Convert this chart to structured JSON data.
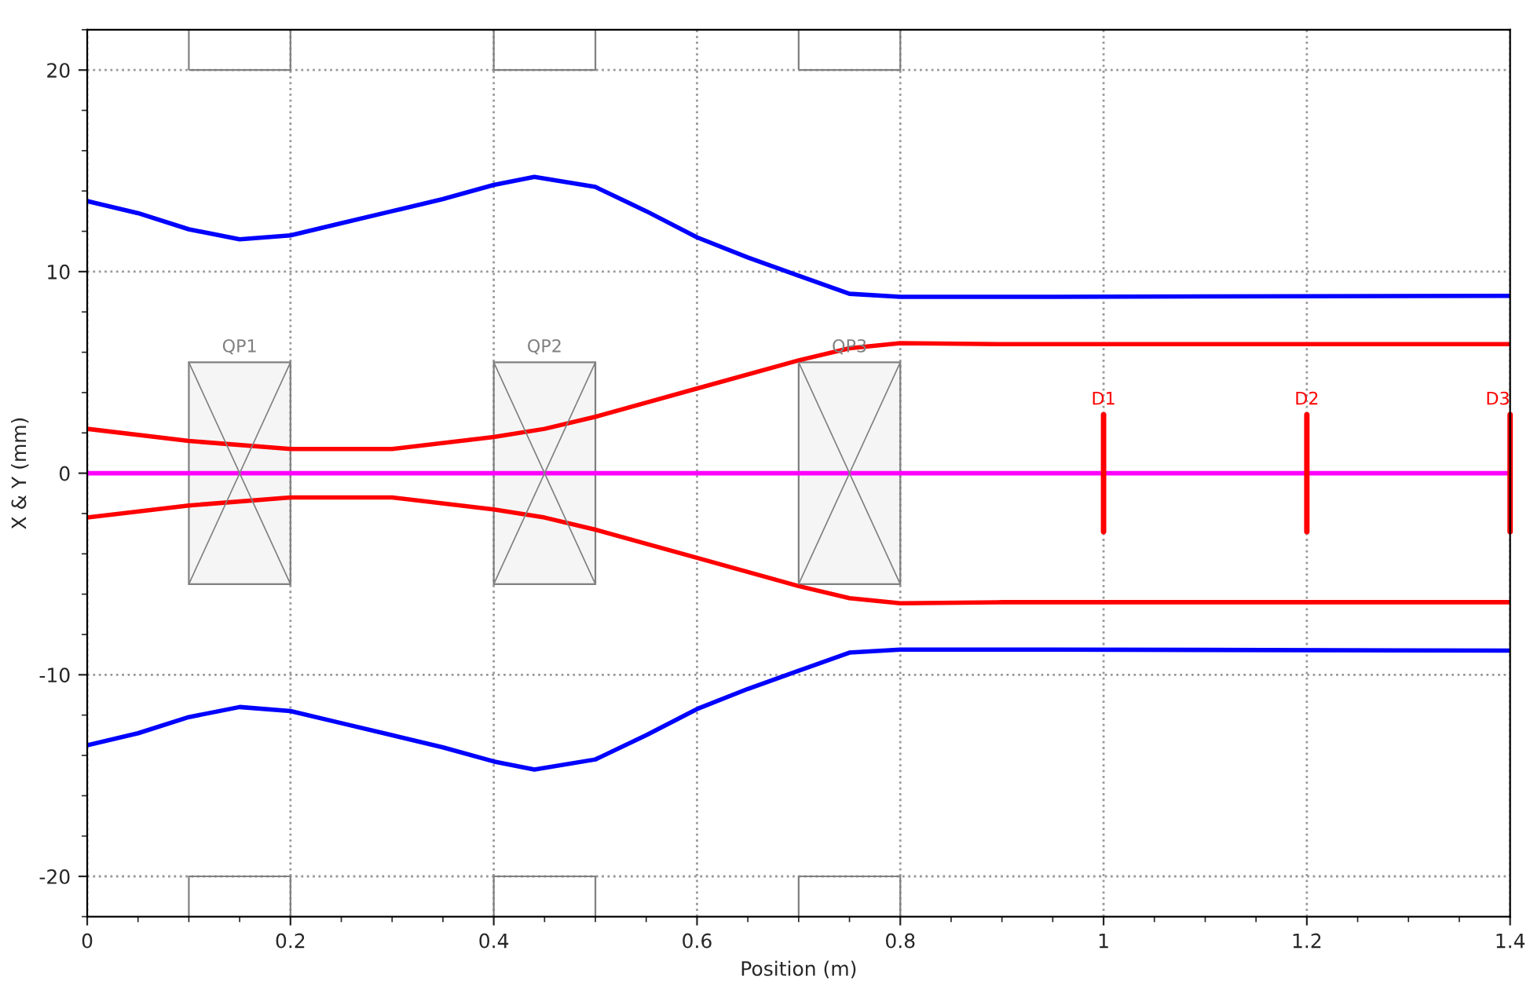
{
  "chart_data": {
    "type": "line",
    "xlabel": "Position (m)",
    "ylabel": "X & Y (mm)",
    "xlim": [
      0,
      1.4
    ],
    "xticks": [
      0,
      0.2,
      0.4,
      0.6,
      0.8,
      1,
      1.2,
      1.4
    ],
    "ylim": [
      -22,
      22
    ],
    "yticks": [
      -20,
      -10,
      0,
      10,
      20
    ],
    "grid": true,
    "legend": false,
    "marker": "none",
    "line_style": "solid",
    "series": [
      {
        "color": "#0000ff",
        "x": [
          0,
          0.05,
          0.1,
          0.15,
          0.2,
          0.25,
          0.3,
          0.35,
          0.4,
          0.44,
          0.5,
          0.55,
          0.6,
          0.65,
          0.7,
          0.75,
          0.8,
          0.95,
          1.4
        ],
        "values": [
          13.5,
          12.9,
          12.1,
          11.6,
          11.8,
          12.4,
          13.0,
          13.6,
          14.3,
          14.7,
          14.2,
          13.0,
          11.7,
          10.7,
          9.8,
          8.9,
          8.75,
          8.75,
          8.8
        ]
      },
      {
        "color": "#0000ff",
        "x": [
          0,
          0.05,
          0.1,
          0.15,
          0.2,
          0.25,
          0.3,
          0.35,
          0.4,
          0.44,
          0.5,
          0.55,
          0.6,
          0.65,
          0.7,
          0.75,
          0.8,
          0.95,
          1.4
        ],
        "values": [
          -13.5,
          -12.9,
          -12.1,
          -11.6,
          -11.8,
          -12.4,
          -13.0,
          -13.6,
          -14.3,
          -14.7,
          -14.2,
          -13.0,
          -11.7,
          -10.7,
          -9.8,
          -8.9,
          -8.75,
          -8.75,
          -8.8
        ]
      },
      {
        "color": "#ff0000",
        "x": [
          0,
          0.1,
          0.2,
          0.3,
          0.4,
          0.45,
          0.5,
          0.6,
          0.7,
          0.75,
          0.8,
          0.9,
          1.4
        ],
        "values": [
          2.2,
          1.6,
          1.2,
          1.2,
          1.8,
          2.2,
          2.8,
          4.2,
          5.6,
          6.2,
          6.45,
          6.4,
          6.4
        ]
      },
      {
        "color": "#ff0000",
        "x": [
          0,
          0.1,
          0.2,
          0.3,
          0.4,
          0.45,
          0.5,
          0.6,
          0.7,
          0.75,
          0.8,
          0.9,
          1.4
        ],
        "values": [
          -2.2,
          -1.6,
          -1.2,
          -1.2,
          -1.8,
          -2.2,
          -2.8,
          -4.2,
          -5.6,
          -6.2,
          -6.45,
          -6.4,
          -6.4
        ]
      },
      {
        "color": "#ff00ff",
        "x": [
          0,
          1.4
        ],
        "values": [
          0,
          0
        ]
      }
    ],
    "bands": [
      {
        "axis": "x",
        "from": 0.1,
        "to": 0.2,
        "label": "QP1",
        "color": "#808080"
      },
      {
        "axis": "x",
        "from": 0.4,
        "to": 0.5,
        "label": "QP2",
        "color": "#808080"
      },
      {
        "axis": "x",
        "from": 0.7,
        "to": 0.8,
        "label": "QP3",
        "color": "#808080"
      }
    ],
    "ref_lines": [
      {
        "axis": "x",
        "value": 1.0,
        "label": "D1",
        "color": "#ff0000"
      },
      {
        "axis": "x",
        "value": 1.2,
        "label": "D2",
        "color": "#ff0000"
      },
      {
        "axis": "x",
        "value": 1.4,
        "label": "D3",
        "color": "#ff0000"
      }
    ]
  }
}
